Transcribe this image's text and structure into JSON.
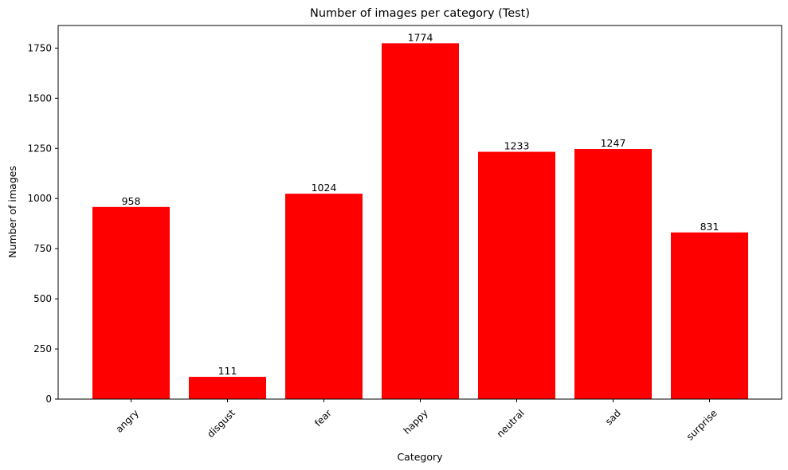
{
  "chart_data": {
    "type": "bar",
    "title": "Number of images per category (Test)",
    "xlabel": "Category",
    "ylabel": "Number of images",
    "categories": [
      "angry",
      "disgust",
      "fear",
      "happy",
      "neutral",
      "sad",
      "surprise"
    ],
    "values": [
      958,
      111,
      1024,
      1774,
      1233,
      1247,
      831
    ],
    "data_labels": [
      "958",
      "111",
      "1024",
      "1774",
      "1233",
      "1247",
      "831"
    ],
    "yticks": [
      0,
      250,
      500,
      750,
      1000,
      1250,
      1500,
      1750
    ],
    "ylim": [
      0,
      1862.7
    ],
    "grid": false,
    "legend": "none",
    "bar_color": "#ff0000",
    "xtick_rotation_deg": 45
  }
}
